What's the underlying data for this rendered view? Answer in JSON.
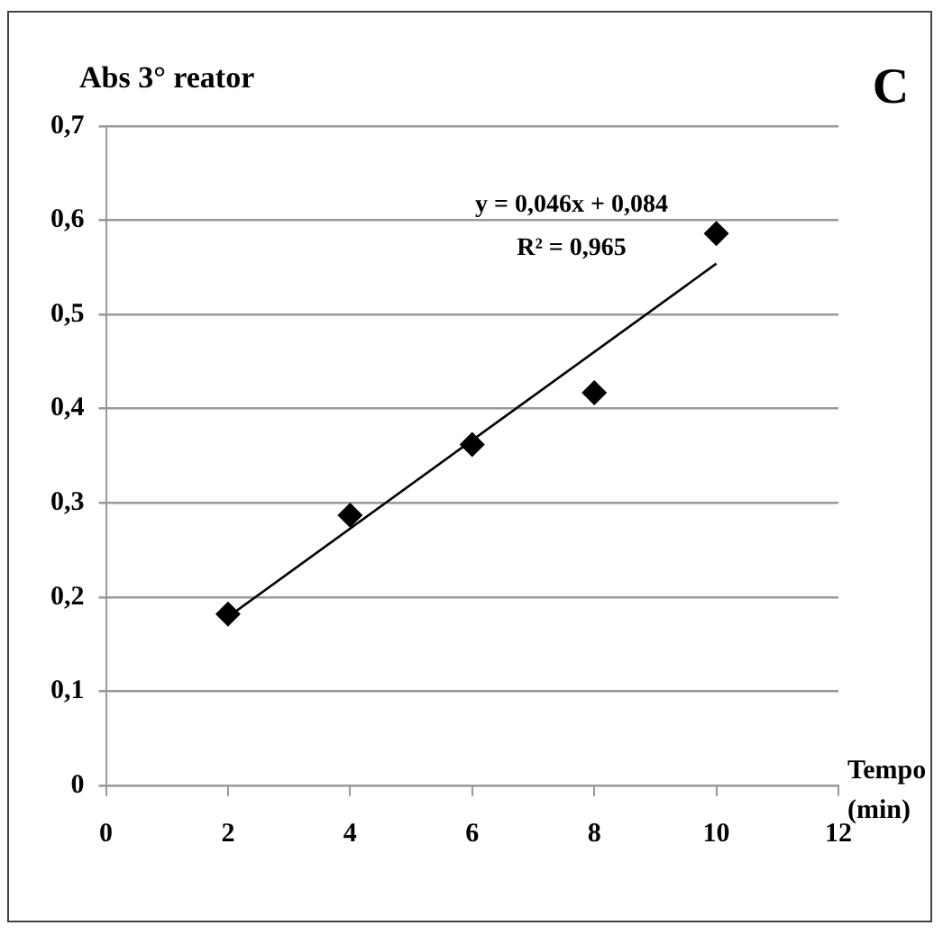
{
  "chart_data": {
    "type": "scatter",
    "ylabel": "Abs 3° reator",
    "xlabel": "Tempo (min)",
    "x": [
      2,
      4,
      6,
      8,
      10
    ],
    "series": [
      {
        "color": "#000000",
        "marker": "diamond",
        "values": [
          0.182,
          0.287,
          0.362,
          0.417,
          0.586
        ]
      },
      {
        "type": "line",
        "color": "#000000",
        "marker": "none",
        "x": [
          2,
          10
        ],
        "values": [
          0.179,
          0.554
        ]
      }
    ],
    "xlim": [
      0,
      12
    ],
    "xticks": [
      0,
      2,
      4,
      6,
      8,
      10,
      12
    ],
    "ylim": [
      0,
      0.7
    ],
    "yticks": [
      {
        "value": 0,
        "label": "0"
      },
      {
        "value": 0.1,
        "label": "0,1"
      },
      {
        "value": 0.2,
        "label": "0,2"
      },
      {
        "value": 0.3,
        "label": "0,3"
      },
      {
        "value": 0.4,
        "label": "0,4"
      },
      {
        "value": 0.5,
        "label": "0,5"
      },
      {
        "value": 0.6,
        "label": "0,6"
      },
      {
        "value": 0.7,
        "label": "0,7"
      }
    ],
    "grid": "y",
    "legend": false,
    "annotations": [
      "y = 0,046x + 0,084",
      "R² = 0,965",
      "C"
    ]
  }
}
